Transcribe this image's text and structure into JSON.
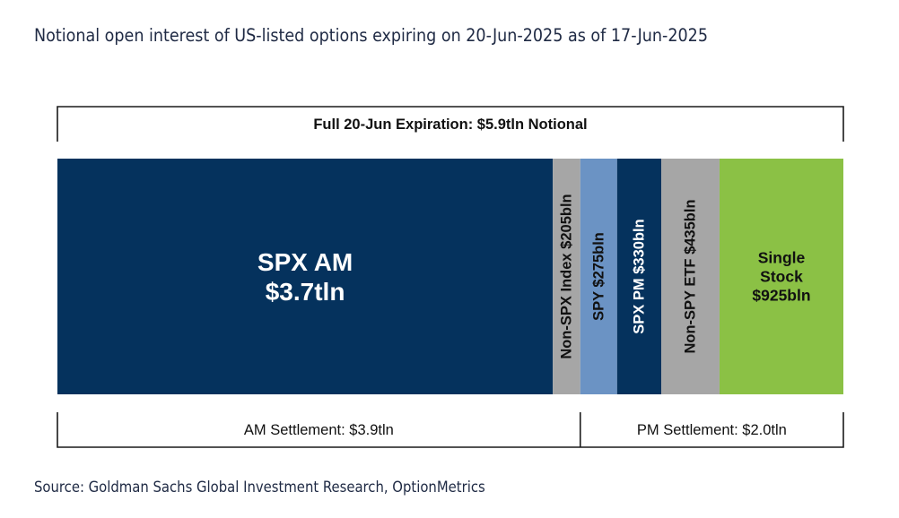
{
  "title": "Notional open interest of US-listed options expiring on 20-Jun-2025 as of 17-Jun-2025",
  "source": "Source: Goldman Sachs Global Investment Research, OptionMetrics",
  "chart_data": {
    "type": "bar",
    "orientation": "stacked-horizontal",
    "total_label": "Full 20-Jun Expiration: $5.9tln Notional",
    "segments": [
      {
        "key": "spx-am",
        "lines": [
          "SPX AM",
          "$3.7tln"
        ],
        "value": 3700,
        "unit": "bln",
        "color": "#05325d",
        "text_color": "#ffffff",
        "vertical": false
      },
      {
        "key": "non-spx-index",
        "lines": [
          "Non-SPX Index $205bln"
        ],
        "value": 205,
        "unit": "bln",
        "color": "#a6a6a6",
        "text_color": "#111111",
        "vertical": true
      },
      {
        "key": "spy",
        "lines": [
          "SPY $275bln"
        ],
        "value": 275,
        "unit": "bln",
        "color": "#6b93c4",
        "text_color": "#111111",
        "vertical": true
      },
      {
        "key": "spx-pm",
        "lines": [
          "SPX PM $330bln"
        ],
        "value": 330,
        "unit": "bln",
        "color": "#05325d",
        "text_color": "#ffffff",
        "vertical": true
      },
      {
        "key": "non-spy-etf",
        "lines": [
          "Non-SPY ETF $435bln"
        ],
        "value": 435,
        "unit": "bln",
        "color": "#a6a6a6",
        "text_color": "#111111",
        "vertical": true
      },
      {
        "key": "single-stock",
        "lines": [
          "Single",
          "Stock",
          "$925bln"
        ],
        "value": 925,
        "unit": "bln",
        "color": "#8bc145",
        "text_color": "#111111",
        "vertical": false
      }
    ],
    "groups": [
      {
        "key": "am-settlement",
        "label": "AM Settlement: $3.9tln",
        "segments": [
          "spx-am",
          "non-spx-index"
        ]
      },
      {
        "key": "pm-settlement",
        "label": "PM Settlement: $2.0tln",
        "segments": [
          "spy",
          "spx-pm",
          "non-spy-etf",
          "single-stock"
        ]
      }
    ]
  }
}
